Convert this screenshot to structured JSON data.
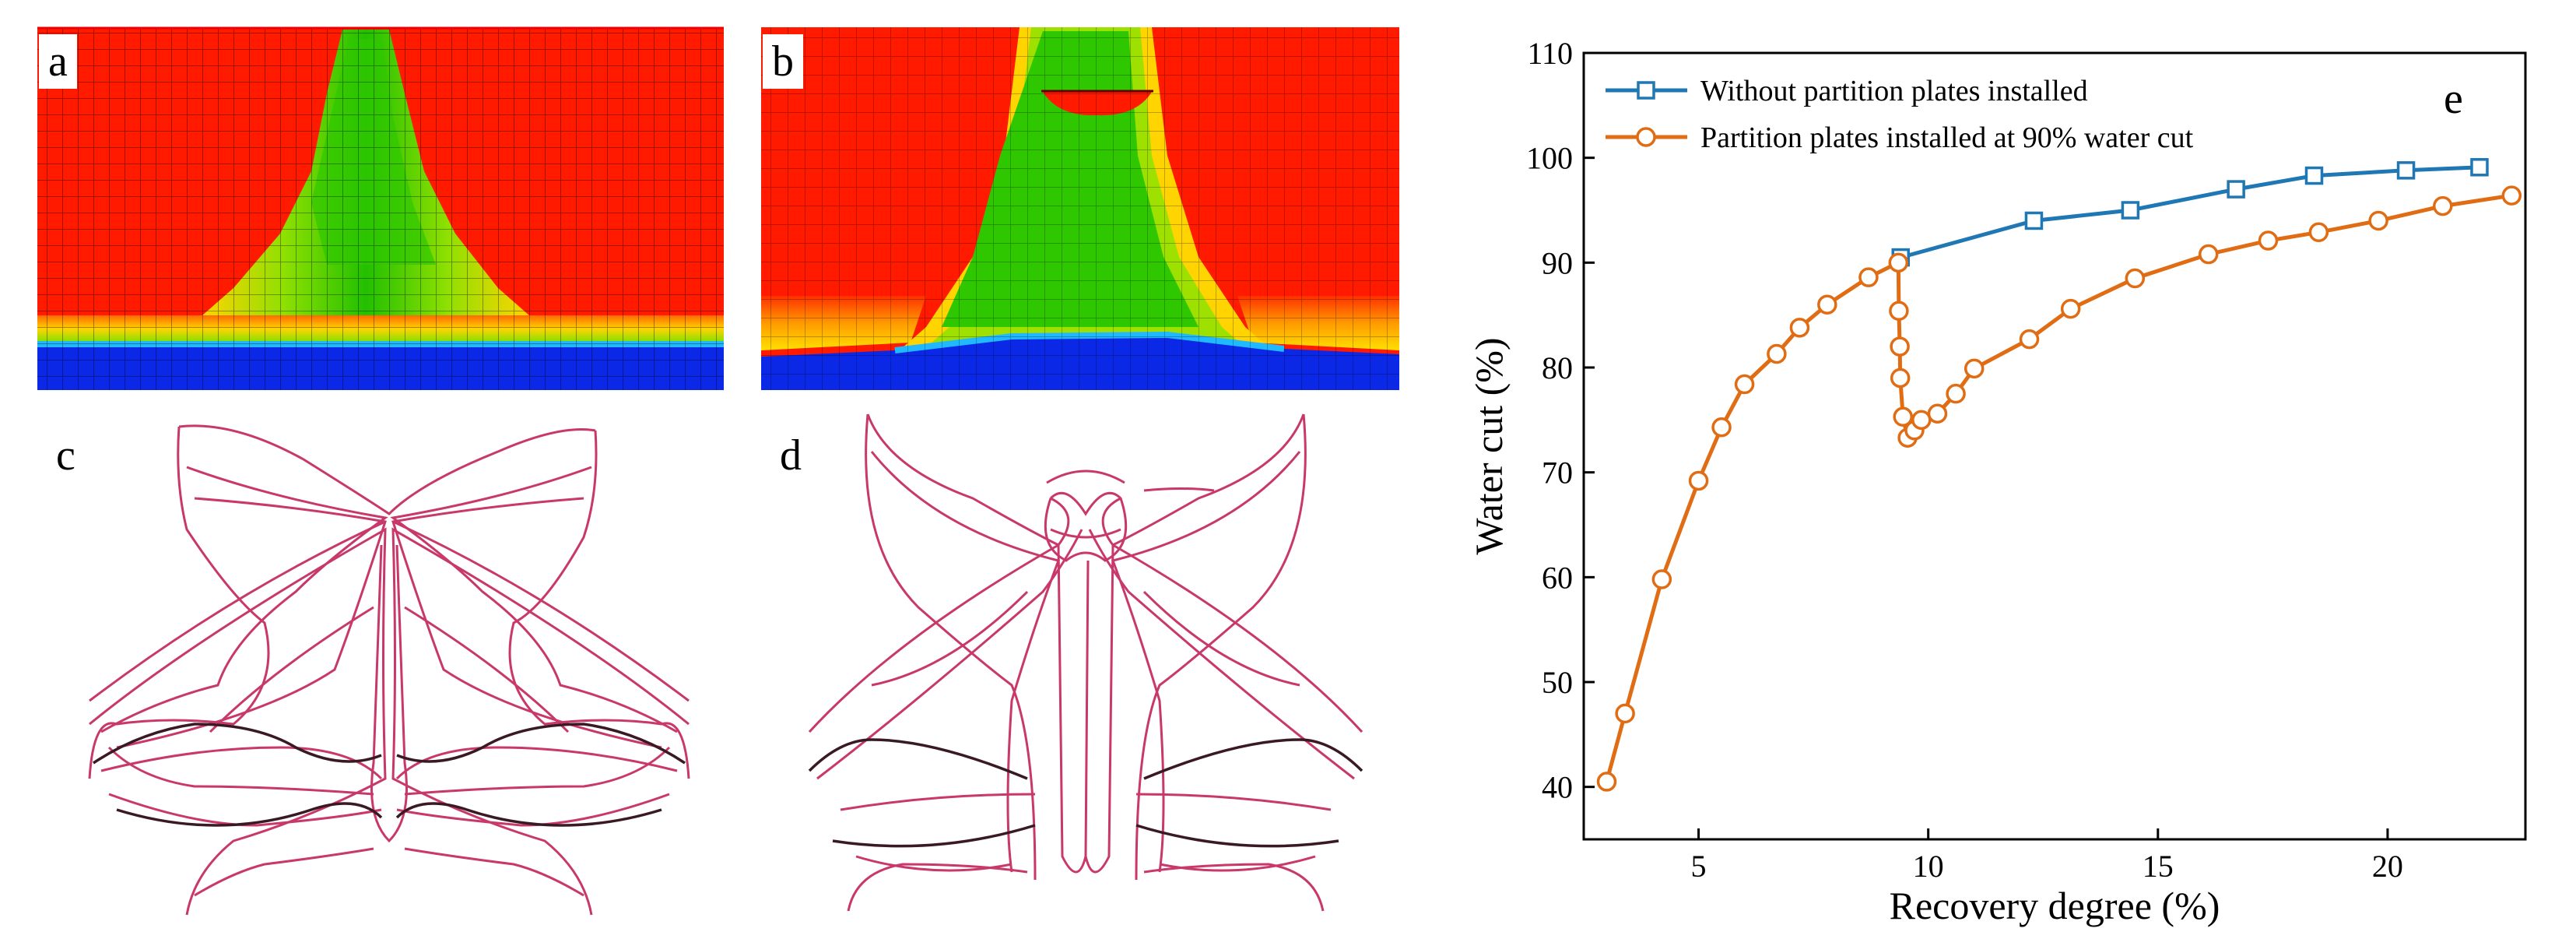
{
  "panels": {
    "a": {
      "label": "a"
    },
    "b": {
      "label": "b"
    },
    "c": {
      "label": "c"
    },
    "d": {
      "label": "d"
    },
    "e": {
      "label": "e"
    }
  },
  "colors": {
    "oil": "#ff1a00",
    "transition": "#ffd400",
    "green": "#33cc00",
    "water": "#0a28e6",
    "grid": "#000000",
    "streamline": "#c8386a",
    "streamline_dark": "#3a1a22",
    "series1": "#1f77b4",
    "series2": "#e06c14"
  },
  "chart_data": {
    "type": "line",
    "title": "",
    "xlabel": "Recovery degree (%)",
    "ylabel": "Water cut (%)",
    "xlim": [
      2.5,
      23
    ],
    "ylim": [
      35,
      110
    ],
    "xticks": [
      5,
      10,
      15,
      20
    ],
    "yticks": [
      40,
      50,
      60,
      70,
      80,
      90,
      100,
      110
    ],
    "legend_position": "top-left",
    "series": [
      {
        "name": "Without partition plates installed",
        "marker": "square",
        "x": [
          9.4,
          12.3,
          14.4,
          16.7,
          18.4,
          20.4,
          22.0
        ],
        "y": [
          90.5,
          94.0,
          95.0,
          97.0,
          98.3,
          98.8,
          99.1
        ]
      },
      {
        "name": "Partition plates installed at 90% water cut",
        "marker": "circle",
        "x": [
          3.0,
          3.4,
          4.2,
          5.0,
          5.5,
          6.0,
          6.7,
          7.2,
          7.8,
          8.7,
          9.35,
          9.36,
          9.38,
          9.39,
          9.45,
          9.55,
          9.7,
          9.85,
          10.2,
          10.6,
          11.0,
          12.2,
          13.1,
          14.5,
          16.1,
          17.4,
          18.5,
          19.8,
          21.2,
          22.7
        ],
        "y": [
          40.5,
          47.0,
          59.8,
          69.2,
          74.3,
          78.4,
          81.3,
          83.8,
          86.0,
          88.6,
          90.0,
          85.4,
          82.0,
          79.0,
          75.3,
          73.3,
          74.0,
          75.0,
          75.6,
          77.5,
          79.9,
          82.7,
          85.6,
          88.5,
          90.8,
          92.1,
          92.9,
          94.0,
          95.4,
          96.4
        ]
      }
    ]
  }
}
